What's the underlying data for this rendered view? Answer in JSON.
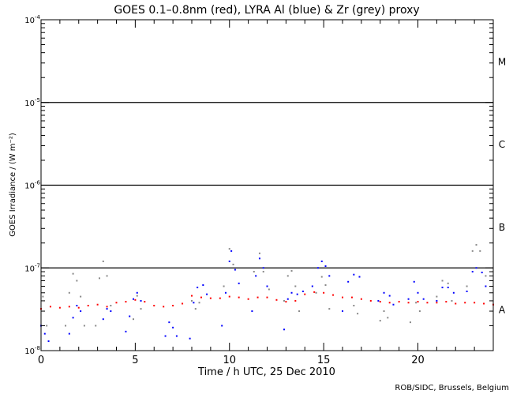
{
  "chart_data": {
    "type": "scatter",
    "title": "GOES 0.1–0.8nm (red), LYRA Al (blue) & Zr (grey) proxy",
    "xlabel": "Time / h UTC, 25 Dec 2010",
    "ylabel": "GOES Irradiance / (W m⁻²)",
    "credit": "ROB/SIDC, Brussels, Belgium",
    "xlim": [
      0,
      24
    ],
    "ylim": [
      1e-08,
      0.0001
    ],
    "yscale": "log",
    "x_ticks": [
      "0",
      "5",
      "10",
      "15",
      "20"
    ],
    "x_tick_values": [
      0,
      5,
      10,
      15,
      20
    ],
    "y_ticks": [
      {
        "base": "10",
        "exp": "-4",
        "value": 0.0001
      },
      {
        "base": "10",
        "exp": "-5",
        "value": 1e-05
      },
      {
        "base": "10",
        "exp": "-6",
        "value": 1e-06
      },
      {
        "base": "10",
        "exp": "-7",
        "value": 1e-07
      },
      {
        "base": "10",
        "exp": "-8",
        "value": 1e-08
      }
    ],
    "class_levels": [
      1e-05,
      1e-06,
      1e-07
    ],
    "class_labels": [
      {
        "label": "M",
        "value": 3.16e-05
      },
      {
        "label": "C",
        "value": 3.16e-06
      },
      {
        "label": "B",
        "value": 3.16e-07
      },
      {
        "label": "A",
        "value": 3.16e-08
      }
    ],
    "series": [
      {
        "name": "GOES 0.1-0.8nm",
        "color": "#ff0000",
        "points": [
          [
            0,
            3.2e-08
          ],
          [
            0.5,
            3.4e-08
          ],
          [
            1,
            3.3e-08
          ],
          [
            1.5,
            3.4e-08
          ],
          [
            2,
            3.3e-08
          ],
          [
            2.5,
            3.5e-08
          ],
          [
            3,
            3.6e-08
          ],
          [
            3.5,
            3.4e-08
          ],
          [
            4,
            3.8e-08
          ],
          [
            4.5,
            3.9e-08
          ],
          [
            5,
            4.1e-08
          ],
          [
            5.5,
            3.9e-08
          ],
          [
            6,
            3.5e-08
          ],
          [
            6.5,
            3.4e-08
          ],
          [
            7,
            3.5e-08
          ],
          [
            7.5,
            3.7e-08
          ],
          [
            8,
            4.6e-08
          ],
          [
            8.5,
            4.4e-08
          ],
          [
            9,
            4.3e-08
          ],
          [
            9.5,
            4.3e-08
          ],
          [
            10,
            4.5e-08
          ],
          [
            10.5,
            4.4e-08
          ],
          [
            11,
            4.2e-08
          ],
          [
            11.5,
            4.4e-08
          ],
          [
            12,
            4.4e-08
          ],
          [
            12.5,
            4.1e-08
          ],
          [
            13,
            3.9e-08
          ],
          [
            13.5,
            4e-08
          ],
          [
            14,
            4.8e-08
          ],
          [
            14.5,
            5.1e-08
          ],
          [
            15,
            5e-08
          ],
          [
            15.5,
            4.7e-08
          ],
          [
            16,
            4.4e-08
          ],
          [
            16.5,
            4.4e-08
          ],
          [
            17,
            4.2e-08
          ],
          [
            17.5,
            4e-08
          ],
          [
            18,
            3.9e-08
          ],
          [
            18.5,
            3.8e-08
          ],
          [
            19,
            3.9e-08
          ],
          [
            19.5,
            3.8e-08
          ],
          [
            20,
            3.9e-08
          ],
          [
            20.5,
            3.8e-08
          ],
          [
            21,
            3.8e-08
          ],
          [
            21.5,
            3.9e-08
          ],
          [
            22,
            3.7e-08
          ],
          [
            22.5,
            3.8e-08
          ],
          [
            23,
            3.8e-08
          ],
          [
            23.5,
            3.7e-08
          ],
          [
            24,
            3.6e-08
          ]
        ]
      },
      {
        "name": "LYRA Al proxy",
        "color": "#0000ff",
        "points": [
          [
            0,
            2e-08
          ],
          [
            0.2,
            1.6e-08
          ],
          [
            0.4,
            1.3e-08
          ],
          [
            1.5,
            1.6e-08
          ],
          [
            1.7,
            2.5e-08
          ],
          [
            1.9,
            3.5e-08
          ],
          [
            2.1,
            3e-08
          ],
          [
            3.3,
            2.4e-08
          ],
          [
            3.5,
            3.2e-08
          ],
          [
            3.7,
            3e-08
          ],
          [
            4.5,
            1.7e-08
          ],
          [
            4.7,
            2.6e-08
          ],
          [
            4.9,
            4.2e-08
          ],
          [
            5.1,
            5e-08
          ],
          [
            5.3,
            4e-08
          ],
          [
            6.6,
            1.5e-08
          ],
          [
            6.8,
            2.2e-08
          ],
          [
            7.0,
            1.9e-08
          ],
          [
            7.2,
            1.5e-08
          ],
          [
            7.9,
            1.4e-08
          ],
          [
            8.1,
            3.8e-08
          ],
          [
            8.3,
            5.8e-08
          ],
          [
            8.6,
            6.2e-08
          ],
          [
            8.8,
            4.8e-08
          ],
          [
            9.6,
            2e-08
          ],
          [
            9.8,
            5e-08
          ],
          [
            10.0,
            1.2e-07
          ],
          [
            10.1,
            1.6e-07
          ],
          [
            10.3,
            9.5e-08
          ],
          [
            10.5,
            6.5e-08
          ],
          [
            11.2,
            3e-08
          ],
          [
            11.4,
            8e-08
          ],
          [
            11.6,
            1.3e-07
          ],
          [
            11.8,
            1e-07
          ],
          [
            12.0,
            6e-08
          ],
          [
            12.9,
            1.8e-08
          ],
          [
            13.1,
            4.2e-08
          ],
          [
            13.3,
            5e-08
          ],
          [
            13.6,
            4.8e-08
          ],
          [
            13.9,
            5.2e-08
          ],
          [
            14.4,
            6e-08
          ],
          [
            14.7,
            1e-07
          ],
          [
            14.9,
            1.2e-07
          ],
          [
            15.1,
            1.05e-07
          ],
          [
            15.3,
            8e-08
          ],
          [
            16.0,
            3e-08
          ],
          [
            16.3,
            6.8e-08
          ],
          [
            16.6,
            8.3e-08
          ],
          [
            16.9,
            7.8e-08
          ],
          [
            17.9,
            4e-08
          ],
          [
            18.2,
            5e-08
          ],
          [
            18.5,
            4.6e-08
          ],
          [
            18.7,
            3.6e-08
          ],
          [
            19.5,
            4.2e-08
          ],
          [
            19.8,
            6.8e-08
          ],
          [
            20.0,
            5e-08
          ],
          [
            20.3,
            4.2e-08
          ],
          [
            21.0,
            4e-08
          ],
          [
            21.3,
            5.8e-08
          ],
          [
            21.6,
            5.8e-08
          ],
          [
            21.9,
            5e-08
          ],
          [
            22.6,
            5.2e-08
          ],
          [
            22.9,
            9e-08
          ],
          [
            23.1,
            1e-07
          ],
          [
            23.4,
            8.8e-08
          ],
          [
            23.6,
            6e-08
          ]
        ]
      },
      {
        "name": "LYRA Zr proxy",
        "color": "#888888",
        "points": [
          [
            0.1,
            4.5e-08
          ],
          [
            0.3,
            2e-08
          ],
          [
            1.3,
            2e-08
          ],
          [
            1.5,
            5e-08
          ],
          [
            1.7,
            8.5e-08
          ],
          [
            1.9,
            7e-08
          ],
          [
            2.1,
            4.5e-08
          ],
          [
            2.3,
            2e-08
          ],
          [
            2.9,
            2e-08
          ],
          [
            3.1,
            7.5e-08
          ],
          [
            3.3,
            1.2e-07
          ],
          [
            3.5,
            8e-08
          ],
          [
            3.7,
            3.5e-08
          ],
          [
            4.9,
            2.4e-08
          ],
          [
            5.1,
            4.6e-08
          ],
          [
            5.3,
            3.2e-08
          ],
          [
            8.0,
            4e-08
          ],
          [
            8.2,
            3.2e-08
          ],
          [
            8.4,
            3.8e-08
          ],
          [
            9.7,
            6e-08
          ],
          [
            10.0,
            1.7e-07
          ],
          [
            10.2,
            1.1e-07
          ],
          [
            11.3,
            9e-08
          ],
          [
            11.6,
            1.5e-07
          ],
          [
            11.8,
            9e-08
          ],
          [
            12.1,
            5.5e-08
          ],
          [
            12.9,
            4e-08
          ],
          [
            13.1,
            8e-08
          ],
          [
            13.3,
            9.2e-08
          ],
          [
            13.5,
            6e-08
          ],
          [
            13.7,
            3e-08
          ],
          [
            14.6,
            5e-08
          ],
          [
            14.9,
            7.8e-08
          ],
          [
            15.1,
            6.2e-08
          ],
          [
            15.3,
            3.2e-08
          ],
          [
            16.6,
            3.5e-08
          ],
          [
            16.8,
            2.8e-08
          ],
          [
            18.0,
            2.3e-08
          ],
          [
            18.2,
            3e-08
          ],
          [
            18.4,
            2.5e-08
          ],
          [
            19.6,
            2.2e-08
          ],
          [
            19.9,
            3.8e-08
          ],
          [
            20.1,
            3e-08
          ],
          [
            21.0,
            4.5e-08
          ],
          [
            21.3,
            7e-08
          ],
          [
            21.6,
            6.5e-08
          ],
          [
            21.8,
            4e-08
          ],
          [
            22.6,
            6e-08
          ],
          [
            22.9,
            1.6e-07
          ],
          [
            23.1,
            1.9e-07
          ],
          [
            23.3,
            1.6e-07
          ],
          [
            23.6,
            8e-08
          ]
        ]
      }
    ]
  }
}
